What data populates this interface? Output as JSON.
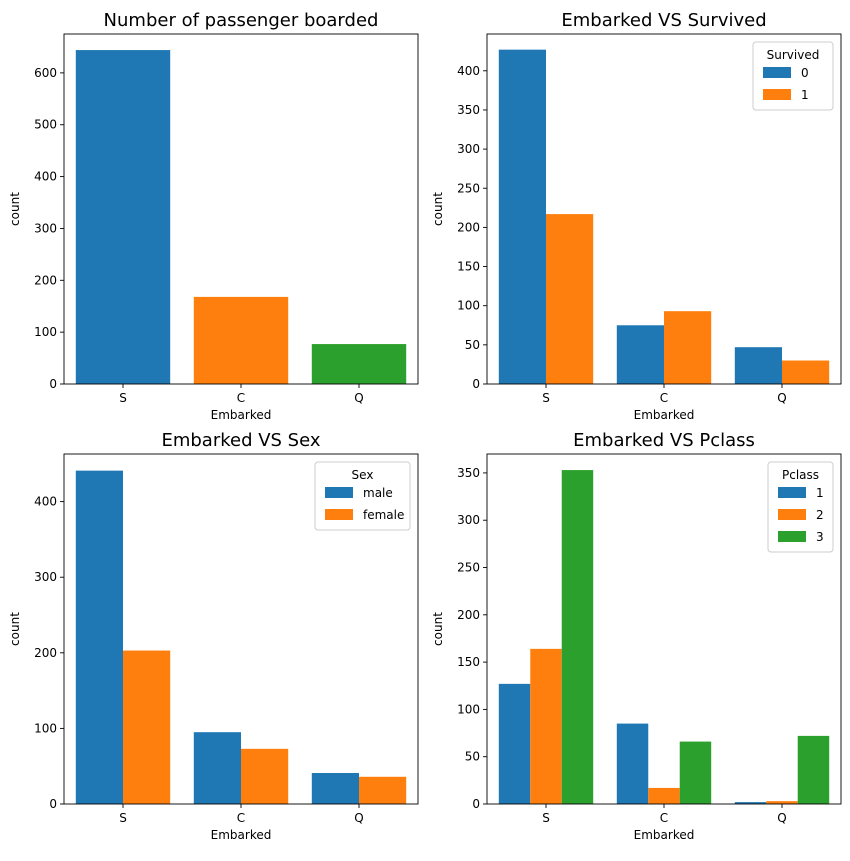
{
  "chart_data": [
    {
      "type": "bar",
      "title": "Number of passenger boarded",
      "xlabel": "Embarked",
      "ylabel": "count",
      "categories": [
        "S",
        "C",
        "Q"
      ],
      "ylim": [
        0,
        675
      ],
      "yticks": [
        0,
        100,
        200,
        300,
        400,
        500,
        600
      ],
      "series": [
        {
          "values": [
            644,
            168,
            77
          ],
          "colors": [
            "#1f77b4",
            "#ff7f0e",
            "#2ca02c"
          ]
        }
      ],
      "legend": null
    },
    {
      "type": "bar",
      "title": "Embarked VS Survived",
      "xlabel": "Embarked",
      "ylabel": "count",
      "categories": [
        "S",
        "C",
        "Q"
      ],
      "ylim": [
        0,
        447
      ],
      "yticks": [
        0,
        50,
        100,
        150,
        200,
        250,
        300,
        350,
        400
      ],
      "series": [
        {
          "name": "0",
          "values": [
            427,
            75,
            47
          ],
          "color": "#1f77b4"
        },
        {
          "name": "1",
          "values": [
            217,
            93,
            30
          ],
          "color": "#ff7f0e"
        }
      ],
      "legend": {
        "title": "Survived",
        "placement": "top-right"
      }
    },
    {
      "type": "bar",
      "title": "Embarked VS Sex",
      "xlabel": "Embarked",
      "ylabel": "count",
      "categories": [
        "S",
        "C",
        "Q"
      ],
      "ylim": [
        0,
        463
      ],
      "yticks": [
        0,
        100,
        200,
        300,
        400
      ],
      "series": [
        {
          "name": "male",
          "values": [
            441,
            95,
            41
          ],
          "color": "#1f77b4"
        },
        {
          "name": "female",
          "values": [
            203,
            73,
            36
          ],
          "color": "#ff7f0e"
        }
      ],
      "legend": {
        "title": "Sex",
        "placement": "top-right"
      }
    },
    {
      "type": "bar",
      "title": "Embarked VS Pclass",
      "xlabel": "Embarked",
      "ylabel": "count",
      "categories": [
        "S",
        "C",
        "Q"
      ],
      "ylim": [
        0,
        370
      ],
      "yticks": [
        0,
        50,
        100,
        150,
        200,
        250,
        300,
        350
      ],
      "series": [
        {
          "name": "1",
          "values": [
            127,
            85,
            2
          ],
          "color": "#1f77b4"
        },
        {
          "name": "2",
          "values": [
            164,
            17,
            3
          ],
          "color": "#ff7f0e"
        },
        {
          "name": "3",
          "values": [
            353,
            66,
            72
          ],
          "color": "#2ca02c"
        }
      ],
      "legend": {
        "title": "Pclass",
        "placement": "top-right"
      }
    }
  ]
}
